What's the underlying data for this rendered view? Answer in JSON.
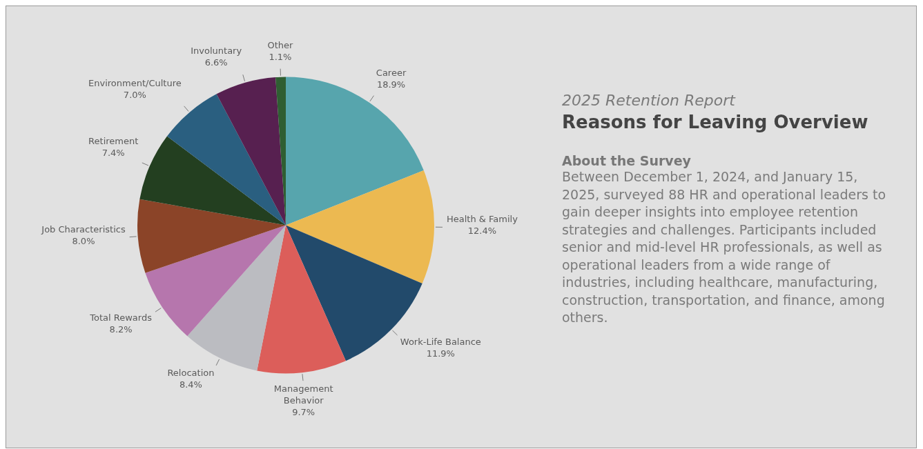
{
  "chart_data": {
    "type": "pie",
    "title": "Reasons for Leaving Overview",
    "subtitle": "2025 Retention Report",
    "categories": [
      "Career",
      "Health & Family",
      "Work-Life Balance",
      "Management Behavior",
      "Relocation",
      "Total Rewards",
      "Job Characteristics",
      "Retirement",
      "Environment/Culture",
      "Involuntary",
      "Other"
    ],
    "values": [
      18.9,
      12.4,
      11.9,
      9.7,
      8.4,
      8.2,
      8.0,
      7.4,
      7.0,
      6.6,
      1.1
    ],
    "value_labels": [
      "18.9%",
      "12.4%",
      "11.9%",
      "9.7%",
      "8.4%",
      "8.2%",
      "8.0%",
      "7.4%",
      "7.0%",
      "6.6%",
      "1.1%"
    ],
    "colors": [
      "#57a5ad",
      "#ecb951",
      "#224a6b",
      "#dc5e5a",
      "#bbbcc1",
      "#b676ad",
      "#8b4428",
      "#233f20",
      "#2a5f80",
      "#572050",
      "#2f5e32"
    ],
    "annotations": [
      "About the Survey",
      "Between December 1, 2024, and January 15, 2025, surveyed 88 HR and operational leaders to gain deeper insights into employee retention strategies and challenges. Participants included senior and mid-level HR professionals, as well as operational leaders from a wide range of industries, including healthcare, manufacturing, construction, transportation, and finance, among others."
    ]
  }
}
